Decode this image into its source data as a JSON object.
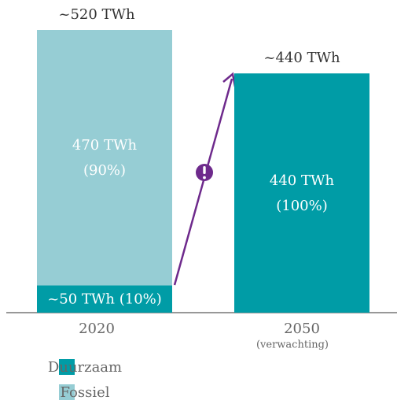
{
  "chart_data": {
    "type": "stacked_bar",
    "categories": [
      "2020",
      "2050"
    ],
    "category_notes": [
      null,
      "(verwachting)"
    ],
    "series": [
      {
        "name": "Duurzaam",
        "color": "#009ca6",
        "values": [
          50,
          440
        ],
        "value_labels": [
          [
            "~50 TWh (10%)"
          ],
          [
            "440 TWh",
            "(100%)"
          ]
        ]
      },
      {
        "name": "Fossiel",
        "color": "#96cdd4",
        "values": [
          470,
          0
        ],
        "value_labels": [
          [
            "470 TWh",
            "(90%)"
          ],
          null
        ]
      }
    ],
    "annotations": [
      {
        "text": "~520 TWh",
        "value": 520
      },
      {
        "text": "~440 TWh",
        "value": 440
      }
    ]
  }
}
